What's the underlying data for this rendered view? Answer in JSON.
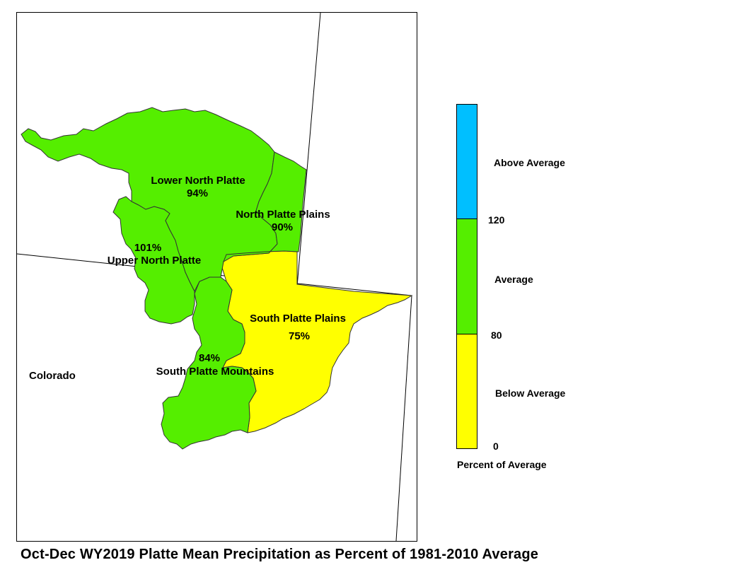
{
  "title": "Oct-Dec WY2019 Platte Mean Precipitation as Percent of 1981-2010 Average",
  "state_label": "Colorado",
  "basins": [
    {
      "name": "Lower North Platte",
      "percent": "94%",
      "category": "Average"
    },
    {
      "name": "North Platte Plains",
      "percent": "90%",
      "category": "Average"
    },
    {
      "name": "Upper North Platte",
      "percent": "101%",
      "category": "Average"
    },
    {
      "name": "South Platte Plains",
      "percent": "75%",
      "category": "Below Average"
    },
    {
      "name": "South Platte Mountains",
      "percent": "84%",
      "category": "Average"
    }
  ],
  "legend": {
    "title": "Percent of Average",
    "classes": [
      {
        "label": "Above Average",
        "color": "#00bfff"
      },
      {
        "label": "Average",
        "color": "#55ee00"
      },
      {
        "label": "Below Average",
        "color": "#ffff00"
      }
    ],
    "breaks": [
      "120",
      "80",
      "0"
    ]
  },
  "colors": {
    "above": "#00bfff",
    "average": "#55ee00",
    "below": "#ffff00"
  }
}
